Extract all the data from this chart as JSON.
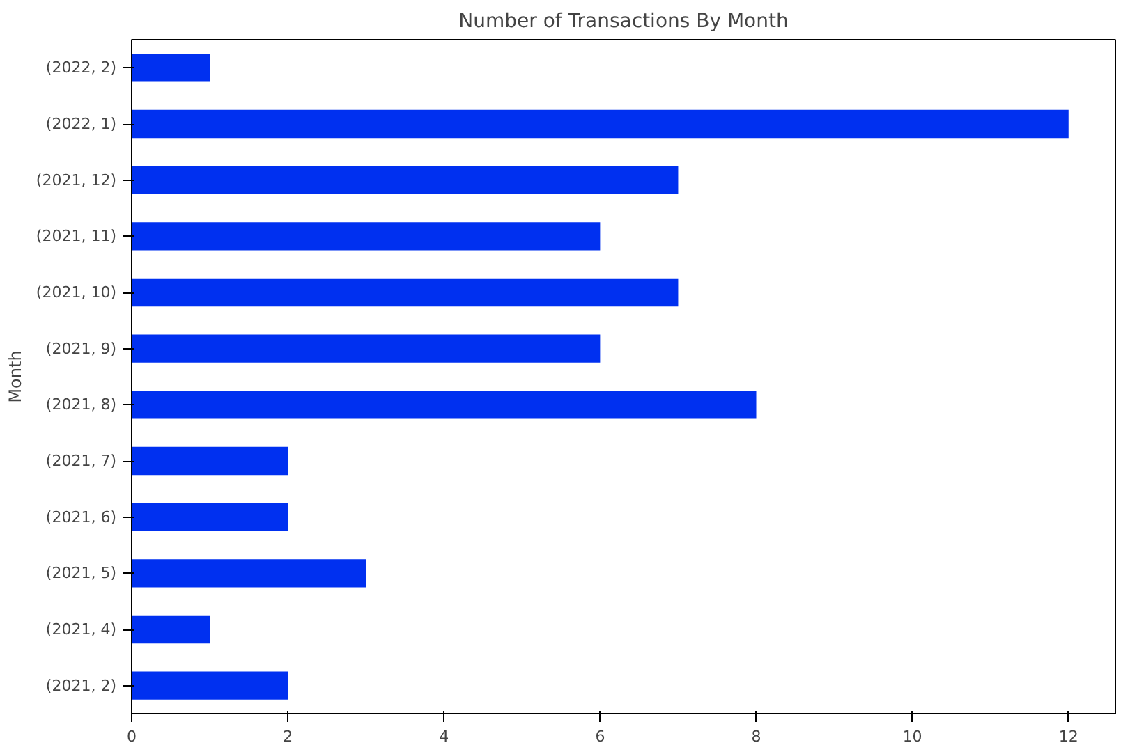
{
  "chart_data": {
    "type": "bar",
    "orientation": "horizontal",
    "title": "Number of Transactions By Month",
    "ylabel": "Month",
    "categories": [
      "(2022, 2)",
      "(2022, 1)",
      "(2021, 12)",
      "(2021, 11)",
      "(2021, 10)",
      "(2021, 9)",
      "(2021, 8)",
      "(2021, 7)",
      "(2021, 6)",
      "(2021, 5)",
      "(2021, 4)",
      "(2021, 2)"
    ],
    "values": [
      1,
      12,
      7,
      6,
      7,
      6,
      8,
      2,
      2,
      3,
      1,
      2
    ],
    "color": "#0030f0",
    "xlim": [
      0,
      12.6
    ],
    "xticks": [
      0,
      2,
      4,
      6,
      8,
      10,
      12
    ],
    "grid": false
  }
}
